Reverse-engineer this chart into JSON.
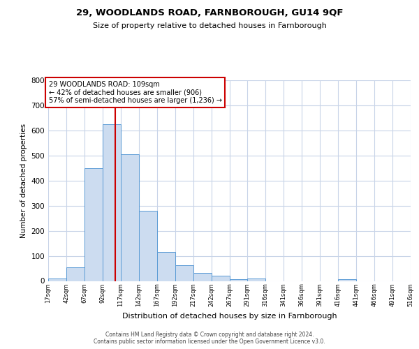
{
  "title": "29, WOODLANDS ROAD, FARNBOROUGH, GU14 9QF",
  "subtitle": "Size of property relative to detached houses in Farnborough",
  "xlabel": "Distribution of detached houses by size in Farnborough",
  "ylabel": "Number of detached properties",
  "bar_color": "#ccdcf0",
  "bar_edge_color": "#5b9bd5",
  "background_color": "#ffffff",
  "grid_color": "#c8d4e8",
  "vline_color": "#cc0000",
  "vline_x": 109,
  "annotation_line1": "29 WOODLANDS ROAD: 109sqm",
  "annotation_line2": "← 42% of detached houses are smaller (906)",
  "annotation_line3": "57% of semi-detached houses are larger (1,236) →",
  "footnote": "Contains HM Land Registry data © Crown copyright and database right 2024.\nContains public sector information licensed under the Open Government Licence v3.0.",
  "bin_edges": [
    17,
    42,
    67,
    92,
    117,
    142,
    167,
    192,
    217,
    242,
    267,
    291,
    316,
    341,
    366,
    391,
    416,
    441,
    466,
    491,
    516
  ],
  "bar_heights": [
    10,
    55,
    450,
    625,
    505,
    280,
    115,
    62,
    33,
    20,
    8,
    9,
    0,
    0,
    0,
    0,
    8,
    0,
    0,
    0
  ],
  "ylim_max": 800,
  "yticks": [
    0,
    100,
    200,
    300,
    400,
    500,
    600,
    700,
    800
  ],
  "title_fontsize": 9.5,
  "subtitle_fontsize": 8.0,
  "ylabel_fontsize": 7.5,
  "xlabel_fontsize": 8.0,
  "ytick_fontsize": 7.5,
  "xtick_fontsize": 6.0,
  "annotation_fontsize": 7.0,
  "footnote_fontsize": 5.5
}
